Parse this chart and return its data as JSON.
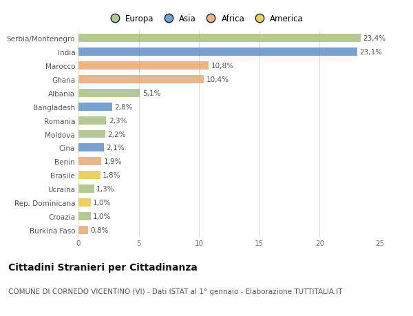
{
  "categories": [
    "Serbia/Montenegro",
    "India",
    "Marocco",
    "Ghana",
    "Albania",
    "Bangladesh",
    "Romania",
    "Moldova",
    "Cina",
    "Benin",
    "Brasile",
    "Ucraina",
    "Rep. Dominicana",
    "Croazia",
    "Burkina Faso"
  ],
  "values": [
    23.4,
    23.1,
    10.8,
    10.4,
    5.1,
    2.8,
    2.3,
    2.2,
    2.1,
    1.9,
    1.8,
    1.3,
    1.0,
    1.0,
    0.8
  ],
  "labels": [
    "23,4%",
    "23,1%",
    "10,8%",
    "10,4%",
    "5,1%",
    "2,8%",
    "2,3%",
    "2,2%",
    "2,1%",
    "1,9%",
    "1,8%",
    "1,3%",
    "1,0%",
    "1,0%",
    "0,8%"
  ],
  "continents": [
    "Europa",
    "Asia",
    "Africa",
    "Africa",
    "Europa",
    "Asia",
    "Europa",
    "Europa",
    "Asia",
    "Africa",
    "America",
    "Europa",
    "America",
    "Europa",
    "Africa"
  ],
  "continent_colors": {
    "Europa": "#a8c080",
    "Asia": "#6090c8",
    "Africa": "#e8a878",
    "America": "#e8c850"
  },
  "legend_entries": [
    "Europa",
    "Asia",
    "Africa",
    "America"
  ],
  "legend_colors": [
    "#a8c080",
    "#6090c8",
    "#e8a878",
    "#e8c850"
  ],
  "xlim": [
    0,
    25
  ],
  "xticks": [
    0,
    5,
    10,
    15,
    20,
    25
  ],
  "title": "Cittadini Stranieri per Cittadinanza",
  "subtitle": "COMUNE DI CORNEDO VICENTINO (VI) - Dati ISTAT al 1° gennaio - Elaborazione TUTTITALIA.IT",
  "background_color": "#ffffff",
  "plot_background": "#ffffff",
  "bar_height": 0.6,
  "label_fontsize": 7.5,
  "tick_fontsize": 7.5,
  "title_fontsize": 10,
  "subtitle_fontsize": 7.5
}
